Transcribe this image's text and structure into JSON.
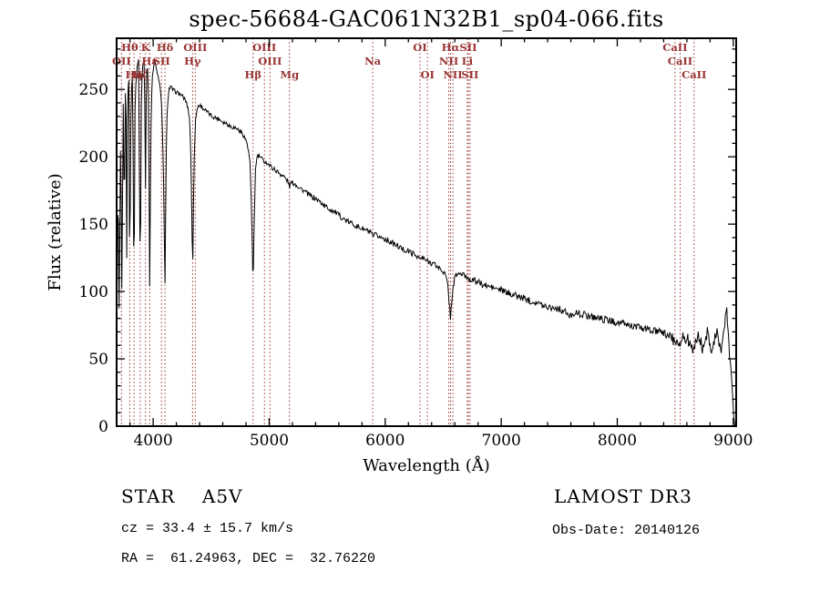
{
  "annotations": {
    "class_line": "STAR    A5V",
    "survey": "LAMOST DR3",
    "cz_line": "cz = 33.4 ± 15.7 km/s",
    "obs_date": "Obs-Date: 20140126",
    "radec_line": "RA =  61.24963, DEC =  32.76220"
  },
  "chart_data": {
    "type": "line",
    "title": "spec-56684-GAC061N32B1_sp04-066.fits",
    "xlabel": "Wavelength (Å)",
    "ylabel": "Flux (relative)",
    "xlim": [
      3685,
      9025
    ],
    "ylim": [
      0,
      288
    ],
    "x_major_ticks": [
      4000,
      5000,
      6000,
      7000,
      8000,
      9000
    ],
    "y_major_ticks": [
      0,
      50,
      100,
      150,
      200,
      250
    ],
    "x_minor_step": 200,
    "y_minor_step": 10,
    "grid": false,
    "line_color": "#000000",
    "spectral_line_color": "#993333",
    "noise_amplitude": 2.0,
    "spectral_lines": [
      {
        "label": "Hθ",
        "wl": 3798,
        "row": 0
      },
      {
        "label": "K",
        "wl": 3934,
        "row": 0
      },
      {
        "label": "Hδ",
        "wl": 4102,
        "row": 0
      },
      {
        "label": "OIII",
        "wl": 4363,
        "row": 0
      },
      {
        "label": "OIII",
        "wl": 4959,
        "row": 0
      },
      {
        "label": "OI",
        "wl": 6300,
        "row": 0
      },
      {
        "label": "Hα",
        "wl": 6563,
        "row": 0
      },
      {
        "label": "SII",
        "wl": 6716,
        "row": 0
      },
      {
        "label": "CaII",
        "wl": 8498,
        "row": 0
      },
      {
        "label": "OII",
        "wl": 3727,
        "row": 1
      },
      {
        "label": "Hε",
        "wl": 3970,
        "row": 1
      },
      {
        "label": "SII",
        "wl": 4072,
        "row": 1
      },
      {
        "label": "Hγ",
        "wl": 4340,
        "row": 1
      },
      {
        "label": "OIII",
        "wl": 5007,
        "row": 1
      },
      {
        "label": "Na",
        "wl": 5893,
        "row": 1
      },
      {
        "label": "NII",
        "wl": 6548,
        "row": 1
      },
      {
        "label": "Li",
        "wl": 6708,
        "row": 1
      },
      {
        "label": "CaII",
        "wl": 8542,
        "row": 1
      },
      {
        "label": "Hη",
        "wl": 3835,
        "row": 2
      },
      {
        "label": "Hζ",
        "wl": 3889,
        "row": 2
      },
      {
        "label": "Hβ",
        "wl": 4861,
        "row": 2
      },
      {
        "label": "Mg",
        "wl": 5175,
        "row": 2
      },
      {
        "label": "OI",
        "wl": 6364,
        "row": 2
      },
      {
        "label": "NII",
        "wl": 6583,
        "row": 2
      },
      {
        "label": "SII",
        "wl": 6731,
        "row": 2
      },
      {
        "label": "CaII",
        "wl": 8662,
        "row": 2
      }
    ],
    "points": [
      [
        3688,
        88
      ],
      [
        3692,
        140
      ],
      [
        3697,
        185
      ],
      [
        3703,
        120
      ],
      [
        3708,
        65
      ],
      [
        3713,
        150
      ],
      [
        3719,
        215
      ],
      [
        3724,
        165
      ],
      [
        3727,
        120
      ],
      [
        3731,
        95
      ],
      [
        3736,
        170
      ],
      [
        3741,
        235
      ],
      [
        3746,
        250
      ],
      [
        3750,
        115
      ],
      [
        3755,
        200
      ],
      [
        3760,
        248
      ],
      [
        3765,
        252
      ],
      [
        3771,
        108
      ],
      [
        3777,
        215
      ],
      [
        3783,
        250
      ],
      [
        3790,
        258
      ],
      [
        3798,
        100
      ],
      [
        3806,
        220
      ],
      [
        3814,
        252
      ],
      [
        3822,
        262
      ],
      [
        3835,
        96
      ],
      [
        3844,
        235
      ],
      [
        3852,
        258
      ],
      [
        3862,
        268
      ],
      [
        3874,
        272
      ],
      [
        3889,
        104
      ],
      [
        3898,
        240
      ],
      [
        3908,
        268
      ],
      [
        3918,
        272
      ],
      [
        3926,
        262
      ],
      [
        3934,
        176
      ],
      [
        3941,
        255
      ],
      [
        3948,
        268
      ],
      [
        3955,
        264
      ],
      [
        3962,
        220
      ],
      [
        3970,
        104
      ],
      [
        3978,
        200
      ],
      [
        3986,
        246
      ],
      [
        3995,
        262
      ],
      [
        4005,
        268
      ],
      [
        4015,
        272
      ],
      [
        4025,
        268
      ],
      [
        4035,
        262
      ],
      [
        4045,
        258
      ],
      [
        4060,
        252
      ],
      [
        4075,
        235
      ],
      [
        4088,
        190
      ],
      [
        4102,
        106
      ],
      [
        4112,
        200
      ],
      [
        4122,
        238
      ],
      [
        4135,
        250
      ],
      [
        4150,
        252
      ],
      [
        4165,
        250
      ],
      [
        4180,
        249
      ],
      [
        4200,
        248
      ],
      [
        4220,
        247
      ],
      [
        4240,
        246
      ],
      [
        4260,
        244
      ],
      [
        4280,
        242
      ],
      [
        4300,
        236
      ],
      [
        4315,
        228
      ],
      [
        4328,
        190
      ],
      [
        4340,
        110
      ],
      [
        4352,
        195
      ],
      [
        4363,
        225
      ],
      [
        4375,
        234
      ],
      [
        4390,
        238
      ],
      [
        4410,
        238
      ],
      [
        4430,
        236
      ],
      [
        4455,
        234
      ],
      [
        4480,
        232
      ],
      [
        4510,
        230
      ],
      [
        4540,
        229
      ],
      [
        4570,
        228
      ],
      [
        4600,
        226
      ],
      [
        4630,
        225
      ],
      [
        4660,
        223
      ],
      [
        4690,
        222
      ],
      [
        4720,
        221
      ],
      [
        4750,
        219
      ],
      [
        4780,
        216
      ],
      [
        4810,
        210
      ],
      [
        4835,
        196
      ],
      [
        4848,
        160
      ],
      [
        4861,
        100
      ],
      [
        4872,
        160
      ],
      [
        4882,
        190
      ],
      [
        4895,
        200
      ],
      [
        4910,
        201
      ],
      [
        4930,
        199
      ],
      [
        4950,
        197
      ],
      [
        4970,
        196
      ],
      [
        4990,
        195
      ],
      [
        5010,
        193
      ],
      [
        5040,
        191
      ],
      [
        5070,
        189
      ],
      [
        5100,
        187
      ],
      [
        5130,
        185
      ],
      [
        5160,
        182
      ],
      [
        5175,
        178
      ],
      [
        5190,
        181
      ],
      [
        5220,
        180
      ],
      [
        5250,
        178
      ],
      [
        5280,
        176
      ],
      [
        5310,
        174
      ],
      [
        5340,
        172
      ],
      [
        5370,
        170
      ],
      [
        5400,
        169
      ],
      [
        5430,
        167
      ],
      [
        5460,
        165
      ],
      [
        5490,
        163
      ],
      [
        5520,
        161
      ],
      [
        5550,
        160
      ],
      [
        5580,
        158
      ],
      [
        5610,
        156
      ],
      [
        5640,
        154
      ],
      [
        5670,
        152
      ],
      [
        5700,
        151
      ],
      [
        5730,
        150
      ],
      [
        5760,
        148
      ],
      [
        5790,
        147
      ],
      [
        5820,
        146
      ],
      [
        5850,
        145
      ],
      [
        5880,
        143
      ],
      [
        5893,
        140
      ],
      [
        5910,
        142
      ],
      [
        5940,
        141
      ],
      [
        5970,
        140
      ],
      [
        6000,
        139
      ],
      [
        6040,
        137
      ],
      [
        6080,
        135
      ],
      [
        6120,
        133
      ],
      [
        6160,
        131
      ],
      [
        6200,
        130
      ],
      [
        6240,
        128
      ],
      [
        6280,
        126
      ],
      [
        6300,
        124
      ],
      [
        6320,
        125
      ],
      [
        6350,
        123
      ],
      [
        6380,
        122
      ],
      [
        6410,
        121
      ],
      [
        6440,
        119
      ],
      [
        6470,
        117
      ],
      [
        6500,
        115
      ],
      [
        6520,
        112
      ],
      [
        6540,
        104
      ],
      [
        6563,
        80
      ],
      [
        6580,
        100
      ],
      [
        6600,
        110
      ],
      [
        6620,
        113
      ],
      [
        6650,
        113
      ],
      [
        6680,
        112
      ],
      [
        6710,
        110
      ],
      [
        6740,
        109
      ],
      [
        6770,
        108
      ],
      [
        6800,
        107
      ],
      [
        6840,
        105
      ],
      [
        6880,
        104
      ],
      [
        6920,
        103
      ],
      [
        6960,
        102
      ],
      [
        7000,
        101
      ],
      [
        7050,
        99
      ],
      [
        7100,
        98
      ],
      [
        7150,
        96
      ],
      [
        7200,
        95
      ],
      [
        7250,
        93
      ],
      [
        7300,
        92
      ],
      [
        7350,
        90
      ],
      [
        7400,
        89
      ],
      [
        7450,
        88
      ],
      [
        7500,
        87
      ],
      [
        7550,
        85
      ],
      [
        7590,
        81
      ],
      [
        7615,
        84
      ],
      [
        7650,
        84
      ],
      [
        7700,
        83
      ],
      [
        7750,
        82
      ],
      [
        7800,
        81
      ],
      [
        7850,
        80
      ],
      [
        7900,
        79
      ],
      [
        7950,
        78
      ],
      [
        8000,
        77
      ],
      [
        8050,
        76
      ],
      [
        8100,
        75
      ],
      [
        8150,
        74
      ],
      [
        8200,
        73
      ],
      [
        8250,
        72
      ],
      [
        8300,
        71
      ],
      [
        8350,
        70
      ],
      [
        8400,
        69
      ],
      [
        8440,
        68
      ],
      [
        8470,
        66
      ],
      [
        8498,
        60
      ],
      [
        8515,
        66
      ],
      [
        8530,
        63
      ],
      [
        8542,
        58
      ],
      [
        8555,
        65
      ],
      [
        8575,
        67
      ],
      [
        8600,
        65
      ],
      [
        8625,
        62
      ],
      [
        8645,
        60
      ],
      [
        8662,
        55
      ],
      [
        8680,
        64
      ],
      [
        8700,
        67
      ],
      [
        8720,
        62
      ],
      [
        8740,
        57
      ],
      [
        8760,
        66
      ],
      [
        8780,
        70
      ],
      [
        8800,
        62
      ],
      [
        8820,
        56
      ],
      [
        8840,
        66
      ],
      [
        8860,
        72
      ],
      [
        8880,
        60
      ],
      [
        8900,
        55
      ],
      [
        8915,
        68
      ],
      [
        8930,
        78
      ],
      [
        8945,
        86
      ],
      [
        8958,
        70
      ],
      [
        8970,
        52
      ],
      [
        8982,
        38
      ],
      [
        8994,
        22
      ],
      [
        9005,
        10
      ],
      [
        9014,
        2
      ],
      [
        9020,
        0
      ]
    ]
  }
}
